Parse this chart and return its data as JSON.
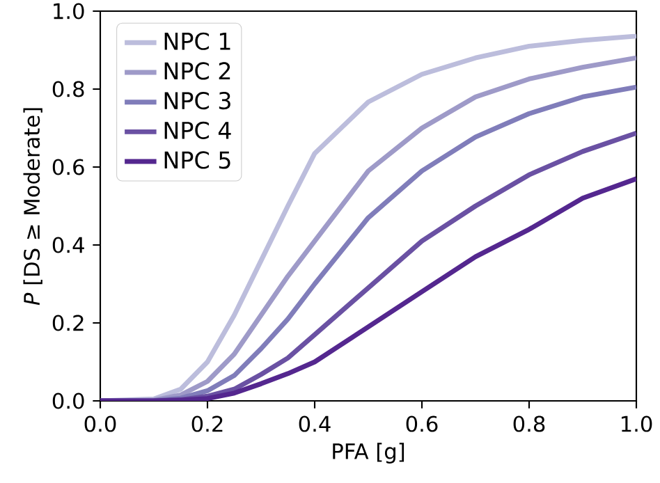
{
  "chart_data": {
    "type": "line",
    "xlabel": "PFA [g]",
    "ylabel": "*P* [DS ≥ Moderate]",
    "x": [
      0,
      0.1,
      0.15,
      0.2,
      0.25,
      0.3,
      0.35,
      0.4,
      0.5,
      0.6,
      0.7,
      0.8,
      0.9,
      1.0
    ],
    "series": [
      {
        "name": "NPC 1",
        "color": "#bcbddc",
        "values": [
          0,
          0.005,
          0.03,
          0.1,
          0.22,
          0.36,
          0.5,
          0.635,
          0.767,
          0.838,
          0.88,
          0.91,
          0.925,
          0.936
        ]
      },
      {
        "name": "NPC 2",
        "color": "#9e9ac8",
        "values": [
          0,
          0.002,
          0.015,
          0.05,
          0.12,
          0.22,
          0.32,
          0.41,
          0.59,
          0.7,
          0.78,
          0.826,
          0.856,
          0.88
        ]
      },
      {
        "name": "NPC 3",
        "color": "#807dba",
        "values": [
          0,
          0.001,
          0.007,
          0.026,
          0.065,
          0.134,
          0.21,
          0.3,
          0.47,
          0.59,
          0.677,
          0.737,
          0.78,
          0.805
        ]
      },
      {
        "name": "NPC 4",
        "color": "#6a51a3",
        "values": [
          0,
          0,
          0.003,
          0.012,
          0.03,
          0.068,
          0.11,
          0.17,
          0.29,
          0.41,
          0.5,
          0.58,
          0.64,
          0.687
        ]
      },
      {
        "name": "NPC 5",
        "color": "#54278f",
        "values": [
          0,
          0,
          0.002,
          0.006,
          0.02,
          0.044,
          0.07,
          0.1,
          0.19,
          0.28,
          0.37,
          0.44,
          0.52,
          0.57
        ]
      }
    ],
    "xlim": [
      0,
      1
    ],
    "ylim": [
      0,
      1
    ],
    "xticks": [
      {
        "value": 0,
        "label": "0.0"
      },
      {
        "value": 0.2,
        "label": "0.2"
      },
      {
        "value": 0.4,
        "label": "0.4"
      },
      {
        "value": 0.6,
        "label": "0.6"
      },
      {
        "value": 0.8,
        "label": "0.8"
      },
      {
        "value": 1,
        "label": "1.0"
      }
    ],
    "yticks": [
      {
        "value": 0,
        "label": "0.0"
      },
      {
        "value": 0.2,
        "label": "0.2"
      },
      {
        "value": 0.4,
        "label": "0.4"
      },
      {
        "value": 0.6,
        "label": "0.6"
      },
      {
        "value": 0.8,
        "label": "0.8"
      },
      {
        "value": 1,
        "label": "1.0"
      }
    ],
    "legend": "top left",
    "line_style": "solid"
  }
}
